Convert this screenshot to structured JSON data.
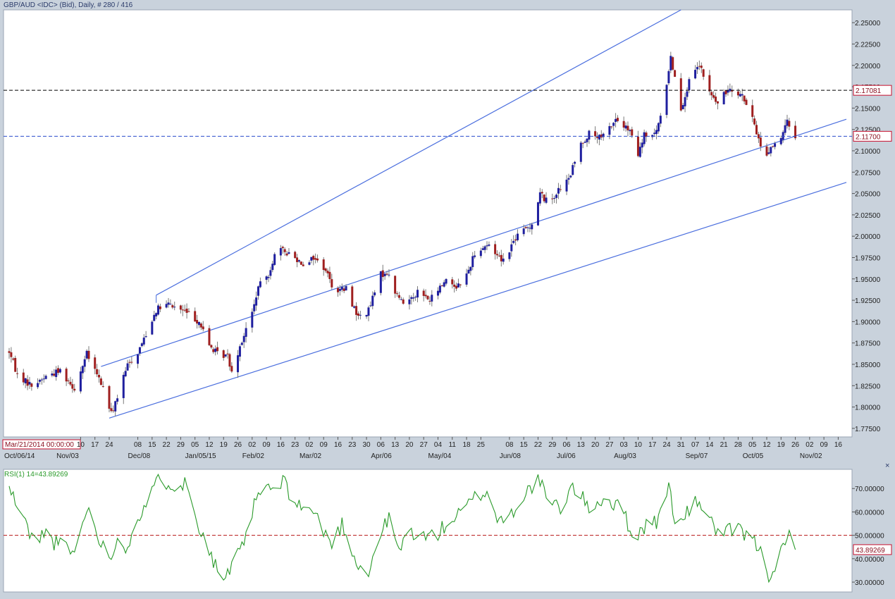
{
  "header": {
    "title": "GBP/AUD <IDC> (Bid), Daily, # 280 / 416"
  },
  "cursor_date": "Mar/21/2014 00:00:00",
  "colors": {
    "background": "#ffffff",
    "frame": "#c9d2dc",
    "up_candle": "#1f1f9f",
    "down_candle": "#9f1f1f",
    "trendline": "#4a6ede",
    "rsi_line": "#2a9a2a",
    "hline": "#b81414",
    "label_border": "#c8102e"
  },
  "price_axis": {
    "ticks": [
      "2.25000",
      "2.22500",
      "2.20000",
      "2.17500",
      "2.15000",
      "2.12500",
      "2.10000",
      "2.07500",
      "2.05000",
      "2.02500",
      "2.00000",
      "1.97500",
      "1.95000",
      "1.92500",
      "1.90000",
      "1.87500",
      "1.85000",
      "1.82500",
      "1.80000",
      "1.77500"
    ],
    "ylim": [
      1.765,
      2.265
    ],
    "levels": [
      {
        "label": "2.17081",
        "value": 2.17081,
        "color": "#000000"
      },
      {
        "label": "2.11700",
        "value": 2.117,
        "color": "#2a4ccc"
      }
    ]
  },
  "date_axis": {
    "day_ticks": [
      "10",
      "17",
      "24",
      "08",
      "15",
      "22",
      "29",
      "05",
      "12",
      "19",
      "26",
      "02",
      "09",
      "16",
      "23",
      "02",
      "09",
      "16",
      "23",
      "30",
      "06",
      "13",
      "20",
      "27",
      "04",
      "11",
      "18",
      "25",
      "08",
      "15",
      "22",
      "29",
      "06",
      "13",
      "20",
      "27",
      "03",
      "10",
      "17",
      "24",
      "31",
      "07",
      "14",
      "21",
      "28",
      "05",
      "12",
      "19",
      "26",
      "02",
      "09",
      "16"
    ],
    "month_ticks": [
      "Oct/06/14",
      "Nov/03",
      "Dec/08",
      "Jan/05/15",
      "Feb/02",
      "Mar/02",
      "Apr/06",
      "May/04",
      "Jun/08",
      "Jul/06",
      "Aug/03",
      "Sep/07",
      "Oct/05",
      "Nov/02"
    ]
  },
  "rsi_panel": {
    "label": "RSI(1) 14=43.89269",
    "current_label": "43.89269",
    "current": 43.89269,
    "ticks": [
      "70.00000",
      "60.00000",
      "50.00000",
      "40.00000",
      "30.00000"
    ],
    "ylim": [
      27,
      77
    ],
    "midline": 50,
    "close_icon": "×"
  },
  "chart_data": [
    {
      "type": "candlestick",
      "title": "GBP/AUD <IDC> (Bid), Daily, # 280 / 416",
      "instrument": "GBP/AUD",
      "x_range": [
        "2014-10-06",
        "2015-11-20"
      ],
      "ylim": [
        1.765,
        2.265
      ],
      "anchors": [
        [
          "2014-10-06",
          1.865
        ],
        [
          "2014-10-10",
          1.838
        ],
        [
          "2014-10-17",
          1.825
        ],
        [
          "2014-10-24",
          1.836
        ],
        [
          "2014-10-31",
          1.843
        ],
        [
          "2014-11-07",
          1.822
        ],
        [
          "2014-11-13",
          1.862
        ],
        [
          "2014-11-21",
          1.823
        ],
        [
          "2014-11-25",
          1.792
        ],
        [
          "2014-11-28",
          1.812
        ],
        [
          "2014-12-03",
          1.849
        ],
        [
          "2014-12-08",
          1.864
        ],
        [
          "2014-12-12",
          1.886
        ],
        [
          "2014-12-17",
          1.914
        ],
        [
          "2014-12-23",
          1.92
        ],
        [
          "2014-12-31",
          1.912
        ],
        [
          "2015-01-07",
          1.9
        ],
        [
          "2015-01-12",
          1.872
        ],
        [
          "2015-01-16",
          1.862
        ],
        [
          "2015-01-21",
          1.86
        ],
        [
          "2015-01-23",
          1.842
        ],
        [
          "2015-01-27",
          1.872
        ],
        [
          "2015-02-02",
          1.91
        ],
        [
          "2015-02-05",
          1.94
        ],
        [
          "2015-02-10",
          1.956
        ],
        [
          "2015-02-14",
          1.985
        ],
        [
          "2015-02-20",
          1.98
        ],
        [
          "2015-02-27",
          1.968
        ],
        [
          "2015-03-04",
          1.975
        ],
        [
          "2015-03-10",
          1.961
        ],
        [
          "2015-03-14",
          1.937
        ],
        [
          "2015-03-20",
          1.938
        ],
        [
          "2015-03-26",
          1.905
        ],
        [
          "2015-03-31",
          1.913
        ],
        [
          "2015-04-06",
          1.955
        ],
        [
          "2015-04-09",
          1.958
        ],
        [
          "2015-04-13",
          1.935
        ],
        [
          "2015-04-17",
          1.921
        ],
        [
          "2015-04-24",
          1.935
        ],
        [
          "2015-04-30",
          1.925
        ],
        [
          "2015-05-05",
          1.94
        ],
        [
          "2015-05-08",
          1.95
        ],
        [
          "2015-05-13",
          1.941
        ],
        [
          "2015-05-18",
          1.954
        ],
        [
          "2015-05-22",
          1.981
        ],
        [
          "2015-05-28",
          1.99
        ],
        [
          "2015-06-05",
          1.972
        ],
        [
          "2015-06-11",
          1.998
        ],
        [
          "2015-06-19",
          2.015
        ],
        [
          "2015-06-23",
          2.05
        ],
        [
          "2015-06-27",
          2.039
        ],
        [
          "2015-07-01",
          2.051
        ],
        [
          "2015-07-07",
          2.066
        ],
        [
          "2015-07-13",
          2.108
        ],
        [
          "2015-07-17",
          2.12
        ],
        [
          "2015-07-23",
          2.114
        ],
        [
          "2015-07-30",
          2.137
        ],
        [
          "2015-08-06",
          2.122
        ],
        [
          "2015-08-10",
          2.094
        ],
        [
          "2015-08-13",
          2.118
        ],
        [
          "2015-08-18",
          2.118
        ],
        [
          "2015-08-21",
          2.138
        ],
        [
          "2015-08-24",
          2.18
        ],
        [
          "2015-08-26",
          2.21
        ],
        [
          "2015-08-31",
          2.15
        ],
        [
          "2015-09-04",
          2.18
        ],
        [
          "2015-09-09",
          2.2
        ],
        [
          "2015-09-14",
          2.168
        ],
        [
          "2015-09-18",
          2.155
        ],
        [
          "2015-09-24",
          2.175
        ],
        [
          "2015-09-30",
          2.165
        ],
        [
          "2015-10-06",
          2.13
        ],
        [
          "2015-10-11",
          2.09
        ],
        [
          "2015-10-14",
          2.105
        ],
        [
          "2015-10-19",
          2.112
        ],
        [
          "2015-10-22",
          2.135
        ],
        [
          "2015-10-26",
          2.117
        ]
      ]
    },
    {
      "type": "line",
      "title": "RSI(1) 14=43.89269",
      "ylim": [
        27,
        77
      ],
      "anchors": [
        [
          "2014-10-06",
          70
        ],
        [
          "2014-10-15",
          53
        ],
        [
          "2014-10-20",
          46
        ],
        [
          "2014-10-23",
          52
        ],
        [
          "2014-10-28",
          47
        ],
        [
          "2014-11-03",
          45
        ],
        [
          "2014-11-07",
          42
        ],
        [
          "2014-11-13",
          62
        ],
        [
          "2014-11-18",
          52
        ],
        [
          "2014-11-24",
          38
        ],
        [
          "2014-11-27",
          48
        ],
        [
          "2014-12-02",
          44
        ],
        [
          "2014-12-08",
          58
        ],
        [
          "2014-12-14",
          66
        ],
        [
          "2014-12-18",
          74
        ],
        [
          "2014-12-26",
          72
        ],
        [
          "2015-01-01",
          72
        ],
        [
          "2015-01-05",
          58
        ],
        [
          "2015-01-09",
          51
        ],
        [
          "2015-01-15",
          37
        ],
        [
          "2015-01-20",
          31
        ],
        [
          "2015-01-24",
          38
        ],
        [
          "2015-01-28",
          44
        ],
        [
          "2015-02-02",
          60
        ],
        [
          "2015-02-07",
          71
        ],
        [
          "2015-02-13",
          69
        ],
        [
          "2015-02-17",
          73
        ],
        [
          "2015-02-24",
          63
        ],
        [
          "2015-03-03",
          61
        ],
        [
          "2015-03-08",
          54
        ],
        [
          "2015-03-13",
          46
        ],
        [
          "2015-03-18",
          55
        ],
        [
          "2015-03-25",
          39
        ],
        [
          "2015-03-31",
          33
        ],
        [
          "2015-04-05",
          50
        ],
        [
          "2015-04-10",
          57
        ],
        [
          "2015-04-15",
          43
        ],
        [
          "2015-04-20",
          52
        ],
        [
          "2015-04-27",
          49
        ],
        [
          "2015-05-04",
          51
        ],
        [
          "2015-05-10",
          56
        ],
        [
          "2015-05-16",
          60
        ],
        [
          "2015-05-22",
          66
        ],
        [
          "2015-05-28",
          69
        ],
        [
          "2015-06-02",
          57
        ],
        [
          "2015-06-08",
          58
        ],
        [
          "2015-06-13",
          65
        ],
        [
          "2015-06-22",
          74
        ],
        [
          "2015-06-28",
          63
        ],
        [
          "2015-07-03",
          62
        ],
        [
          "2015-07-09",
          71
        ],
        [
          "2015-07-17",
          62
        ],
        [
          "2015-07-25",
          66
        ],
        [
          "2015-08-03",
          60
        ],
        [
          "2015-08-08",
          48
        ],
        [
          "2015-08-14",
          55
        ],
        [
          "2015-08-20",
          56
        ],
        [
          "2015-08-25",
          72
        ],
        [
          "2015-08-29",
          52
        ],
        [
          "2015-09-04",
          61
        ],
        [
          "2015-09-09",
          65
        ],
        [
          "2015-09-15",
          55
        ],
        [
          "2015-09-20",
          50
        ],
        [
          "2015-09-27",
          53
        ],
        [
          "2015-10-03",
          49
        ],
        [
          "2015-10-08",
          45
        ],
        [
          "2015-10-13",
          33
        ],
        [
          "2015-10-17",
          39
        ],
        [
          "2015-10-21",
          45
        ],
        [
          "2015-10-23",
          50
        ],
        [
          "2015-10-26",
          43.89
        ]
      ]
    }
  ]
}
